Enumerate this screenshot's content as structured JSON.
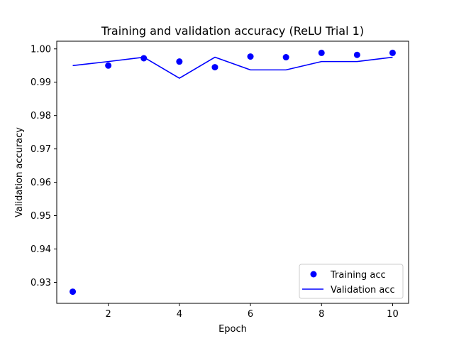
{
  "chart_data": {
    "type": "scatter",
    "title": "Training and validation accuracy (ReLU Trial 1)",
    "xlabel": "Epoch",
    "ylabel": "Validation accuracy",
    "xlim": [
      0.55,
      10.45
    ],
    "ylim": [
      0.9237,
      1.0023
    ],
    "xticks": [
      2,
      4,
      6,
      8,
      10
    ],
    "xtick_labels": [
      "2",
      "4",
      "6",
      "8",
      "10"
    ],
    "yticks": [
      0.93,
      0.94,
      0.95,
      0.96,
      0.97,
      0.98,
      0.99,
      1.0
    ],
    "ytick_labels": [
      "0.93",
      "0.94",
      "0.95",
      "0.96",
      "0.97",
      "0.98",
      "0.99",
      "1.00"
    ],
    "grid": false,
    "legend_position": "lower-right",
    "series": [
      {
        "name": "Training acc",
        "style": "markers",
        "color": "#0000ff",
        "x": [
          1,
          2,
          3,
          4,
          5,
          6,
          7,
          8,
          9,
          10
        ],
        "y": [
          0.9272,
          0.995,
          0.9972,
          0.9962,
          0.9945,
          0.9977,
          0.9975,
          0.9988,
          0.9982,
          0.9988
        ]
      },
      {
        "name": "Validation acc",
        "style": "line",
        "color": "#0000ff",
        "x": [
          1,
          2,
          3,
          4,
          5,
          6,
          7,
          8,
          9,
          10
        ],
        "y": [
          0.995,
          0.9962,
          0.9975,
          0.9912,
          0.9975,
          0.9937,
          0.9937,
          0.9962,
          0.9962,
          0.9975
        ]
      }
    ]
  }
}
